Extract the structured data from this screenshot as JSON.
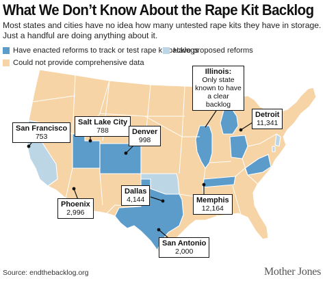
{
  "title": "What We Don’t Know About the Rape Kit Backlog",
  "subtitle_line1": "Most states and cities have no idea how many untested rape kits they have in storage.",
  "subtitle_line2": "Just a handful are doing anything about it.",
  "legend": [
    {
      "label": "Have enacted reforms to track or test rape kit backlogs",
      "color": "#5b9ccb"
    },
    {
      "label": "Have proposed reforms",
      "color": "#bcd6e6"
    },
    {
      "label": "Could not provide comprehensive data",
      "color": "#f7d4a6"
    }
  ],
  "colors": {
    "enacted": "#5b9ccb",
    "proposed": "#bcd6e6",
    "nodata": "#f7d4a6",
    "border": "#ffffff",
    "line": "#111111"
  },
  "callouts": {
    "illinois": {
      "city": "Illinois",
      "colon": ":",
      "text": "Only state known to have a clear backlog"
    },
    "san_francisco": {
      "city": "San Francisco",
      "num": "753"
    },
    "salt_lake_city": {
      "city": "Salt Lake City",
      "num": "788"
    },
    "denver": {
      "city": "Denver",
      "num": "998"
    },
    "detroit": {
      "city": "Detroit",
      "num": "11,341"
    },
    "dallas": {
      "city": "Dallas",
      "num": "4,144"
    },
    "phoenix": {
      "city": "Phoenix",
      "num": "2,996"
    },
    "memphis": {
      "city": "Memphis",
      "num": "12,164"
    },
    "san_antonio": {
      "city": "San Antonio",
      "num": "2,000"
    }
  },
  "source": "Source: endthebacklog.org",
  "brand": "Mother Jones"
}
